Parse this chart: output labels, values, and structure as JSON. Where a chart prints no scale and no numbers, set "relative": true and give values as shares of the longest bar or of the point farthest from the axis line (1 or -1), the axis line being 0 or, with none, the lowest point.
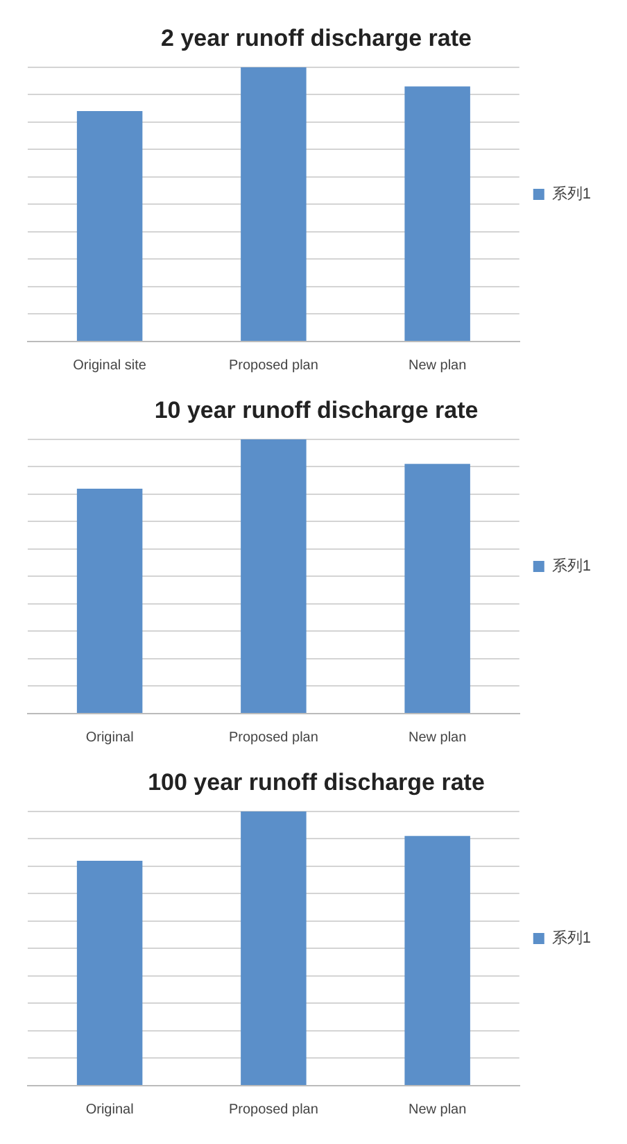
{
  "chart_data": [
    {
      "type": "bar",
      "title": "2 year runoff discharge rate",
      "categories": [
        "Original site",
        "Proposed plan",
        "New plan"
      ],
      "relative": true,
      "series": [
        {
          "name": "系列1",
          "color": "#5b8fc9",
          "values": [
            0.84,
            1,
            0.93
          ]
        }
      ],
      "grid": "y",
      "legend": "right"
    },
    {
      "type": "bar",
      "title": "10 year runoff discharge rate",
      "categories": [
        "Original",
        "Proposed plan",
        "New plan"
      ],
      "relative": true,
      "series": [
        {
          "name": "系列1",
          "color": "#5b8fc9",
          "values": [
            0.82,
            1,
            0.91
          ]
        }
      ],
      "grid": "y",
      "legend": "right"
    },
    {
      "type": "bar",
      "title": "100 year runoff discharge rate",
      "categories": [
        "Original",
        "Proposed plan",
        "New plan"
      ],
      "relative": true,
      "series": [
        {
          "name": "系列1",
          "color": "#5b8fc9",
          "values": [
            0.82,
            1,
            0.91
          ]
        }
      ],
      "grid": "y",
      "legend": "right"
    }
  ]
}
